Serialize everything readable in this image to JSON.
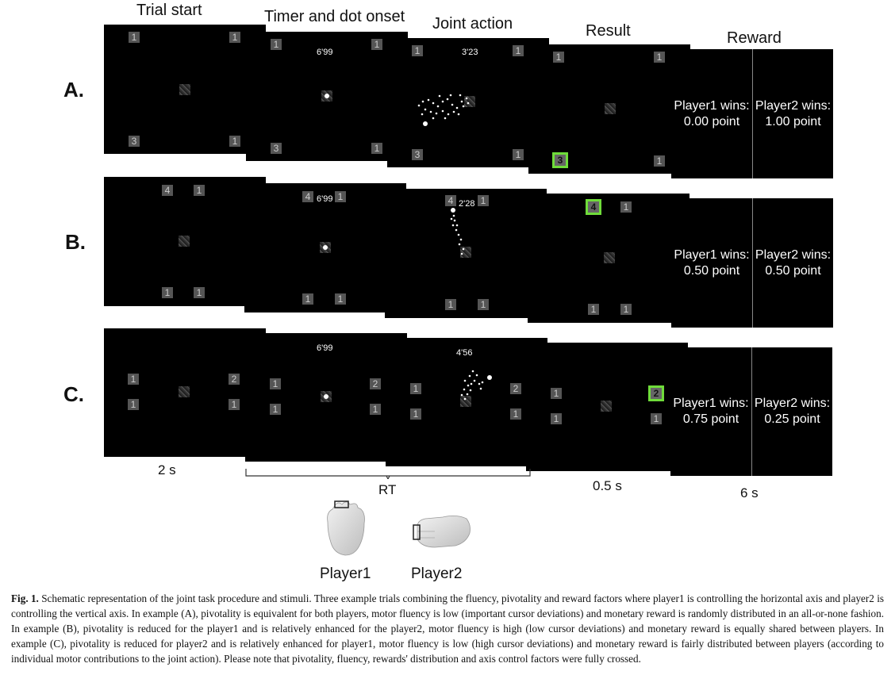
{
  "column_titles": [
    "Trial start",
    "Timer and dot onset",
    "Joint action",
    "Result",
    "Reward"
  ],
  "rows": [
    {
      "label": "A.",
      "trial_start": {
        "top_left": "1",
        "top_right": "1",
        "bottom_left": "3",
        "bottom_right": "1"
      },
      "timer_onset": {
        "timer": "6'99",
        "top_left": "1",
        "top_right": "1",
        "bottom_left": "3",
        "bottom_right": "1"
      },
      "joint_action": {
        "timer": "3'23",
        "top_left": "1",
        "top_right": "1",
        "bottom_left": "3",
        "bottom_right": "1"
      },
      "result": {
        "top_left": "1",
        "top_right": "1",
        "bottom_left": "3",
        "bottom_right": "1"
      },
      "reward": {
        "player1": "Player1 wins:",
        "player1_points": "0.00 point",
        "player2": "Player2 wins:",
        "player2_points": "1.00 point"
      }
    },
    {
      "label": "B.",
      "trial_start": {
        "top_left": "4",
        "top_right": "1",
        "bottom_left": "1",
        "bottom_right": "1"
      },
      "timer_onset": {
        "timer": "6'99",
        "top_left": "4",
        "top_right": "1",
        "bottom_left": "1",
        "bottom_right": "1"
      },
      "joint_action": {
        "timer": "2'28",
        "top_left": "4",
        "top_right": "1",
        "bottom_left": "1",
        "bottom_right": "1"
      },
      "result": {
        "top_left": "4",
        "top_right": "1",
        "bottom_left": "1",
        "bottom_right": "1"
      },
      "reward": {
        "player1": "Player1 wins:",
        "player1_points": "0.50 point",
        "player2": "Player2 wins:",
        "player2_points": "0.50 point"
      }
    },
    {
      "label": "C.",
      "trial_start": {
        "top_left": "1",
        "top_right": "2",
        "bottom_left": "1",
        "bottom_right": "1"
      },
      "timer_onset": {
        "timer": "6'99",
        "top_left": "1",
        "top_right": "2",
        "bottom_left": "1",
        "bottom_right": "1"
      },
      "joint_action": {
        "timer": "4'56",
        "top_left": "1",
        "top_right": "2",
        "bottom_left": "1",
        "bottom_right": "1"
      },
      "result": {
        "top_left": "1",
        "top_right": "2",
        "bottom_left": "1",
        "bottom_right": "1"
      },
      "reward": {
        "player1": "Player1 wins:",
        "player1_points": "0.75 point",
        "player2": "Player2 wins:",
        "player2_points": "0.25 point"
      }
    }
  ],
  "timings": {
    "trial_start": "2 s",
    "rt": "RT",
    "result": "0.5 s",
    "reward": "6 s"
  },
  "players": [
    "Player1",
    "Player2"
  ],
  "caption": {
    "label": "Fig. 1.",
    "text": "Schematic representation of the joint task procedure and stimuli. Three example trials combining the fluency, pivotality and reward factors where player1 is controlling the horizontal axis and player2 is controlling the vertical axis. In example (A), pivotality is equivalent for both players, motor fluency is low (important cursor deviations) and monetary reward is randomly distributed in an all-or-none fashion. In example (B), pivotality is reduced for the player1 and is relatively enhanced for the player2, motor fluency is high (low cursor deviations) and monetary reward is equally shared between players. In example (C), pivotality is reduced for player2 and is relatively enhanced for player1, motor fluency is low (high cursor deviations) and monetary reward is fairly distributed between players (according to individual motor contributions to the joint action). Please note that pivotality, fluency, rewards' distribution and axis control factors were fully crossed."
  },
  "highlight_color": "#6fdc3a"
}
